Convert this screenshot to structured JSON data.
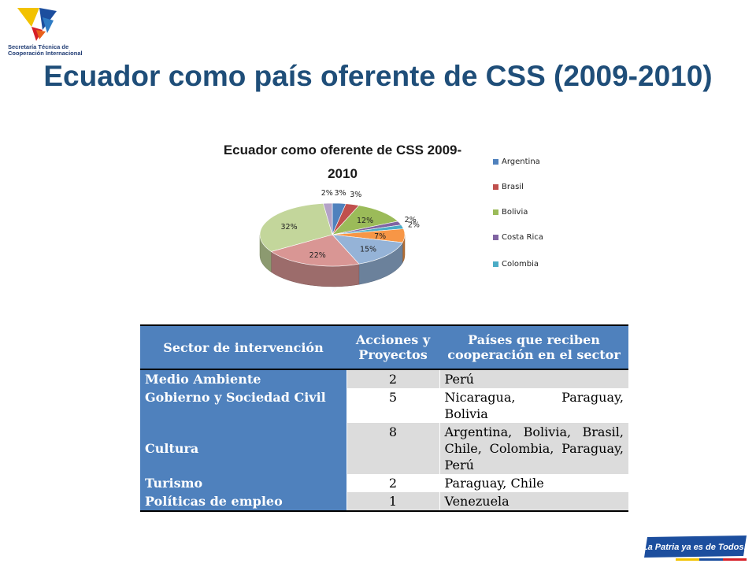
{
  "header": {
    "logo_org_line1": "Secretaría Técnica de",
    "logo_org_line2": "Cooperación Internacional",
    "title": "Ecuador como país oferente de CSS (2009-2010)"
  },
  "chart_data": {
    "type": "pie",
    "title_line1": "Ecuador como oferente de CSS 2009-",
    "title_line2": "2010",
    "slices": [
      {
        "label": "",
        "value": 3,
        "display": "3%",
        "color": "#4f81bd"
      },
      {
        "label": "",
        "value": 3,
        "display": "3%",
        "color": "#c0504d"
      },
      {
        "label": "",
        "value": 12,
        "display": "12%",
        "color": "#9bbb59"
      },
      {
        "label": "",
        "value": 2,
        "display": "2%",
        "color": "#8064a2"
      },
      {
        "label": "",
        "value": 2,
        "display": "2%",
        "color": "#4bacc6"
      },
      {
        "label": "",
        "value": 7,
        "display": "7%",
        "color": "#f79646"
      },
      {
        "label": "",
        "value": 15,
        "display": "15%",
        "color": "#95b3d7"
      },
      {
        "label": "",
        "value": 22,
        "display": "22%",
        "color": "#d99694"
      },
      {
        "label": "",
        "value": 32,
        "display": "32%",
        "color": "#c3d69b"
      },
      {
        "label": "",
        "value": 2,
        "display": "2%",
        "color": "#b3a2c7"
      }
    ],
    "legend_position": "right",
    "legend": [
      {
        "label": "Argentina",
        "color": "#4f81bd"
      },
      {
        "label": "Brasil",
        "color": "#c0504d"
      },
      {
        "label": "Bolivia",
        "color": "#9bbb59"
      },
      {
        "label": "Costa Rica",
        "color": "#8064a2"
      },
      {
        "label": "Colombia",
        "color": "#4bacc6"
      }
    ]
  },
  "table": {
    "headers": [
      "Sector de intervención",
      "Acciones y Proyectos",
      "Países que reciben cooperación en el sector"
    ],
    "rows": [
      {
        "sector": "Medio Ambiente",
        "count": "2",
        "countries": "Perú"
      },
      {
        "sector": "Gobierno y Sociedad Civil",
        "count": "5",
        "countries": "Nicaragua, Paraguay, Bolivia"
      },
      {
        "sector": "Cultura",
        "count": "8",
        "countries": "Argentina, Bolivia, Brasil, Chile, Colombia, Paraguay, Perú"
      },
      {
        "sector": "Turismo",
        "count": "2",
        "countries": "Paraguay, Chile"
      },
      {
        "sector": "Políticas de empleo",
        "count": "1",
        "countries": "Venezuela"
      }
    ]
  },
  "footer": {
    "banner_text": "La Patria ya es de Todos!"
  },
  "colors": {
    "title": "#1f4e79",
    "table_header": "#4f81bd",
    "row_shade": "#dcdcdc",
    "banner_blue": "#1c4e9e"
  }
}
